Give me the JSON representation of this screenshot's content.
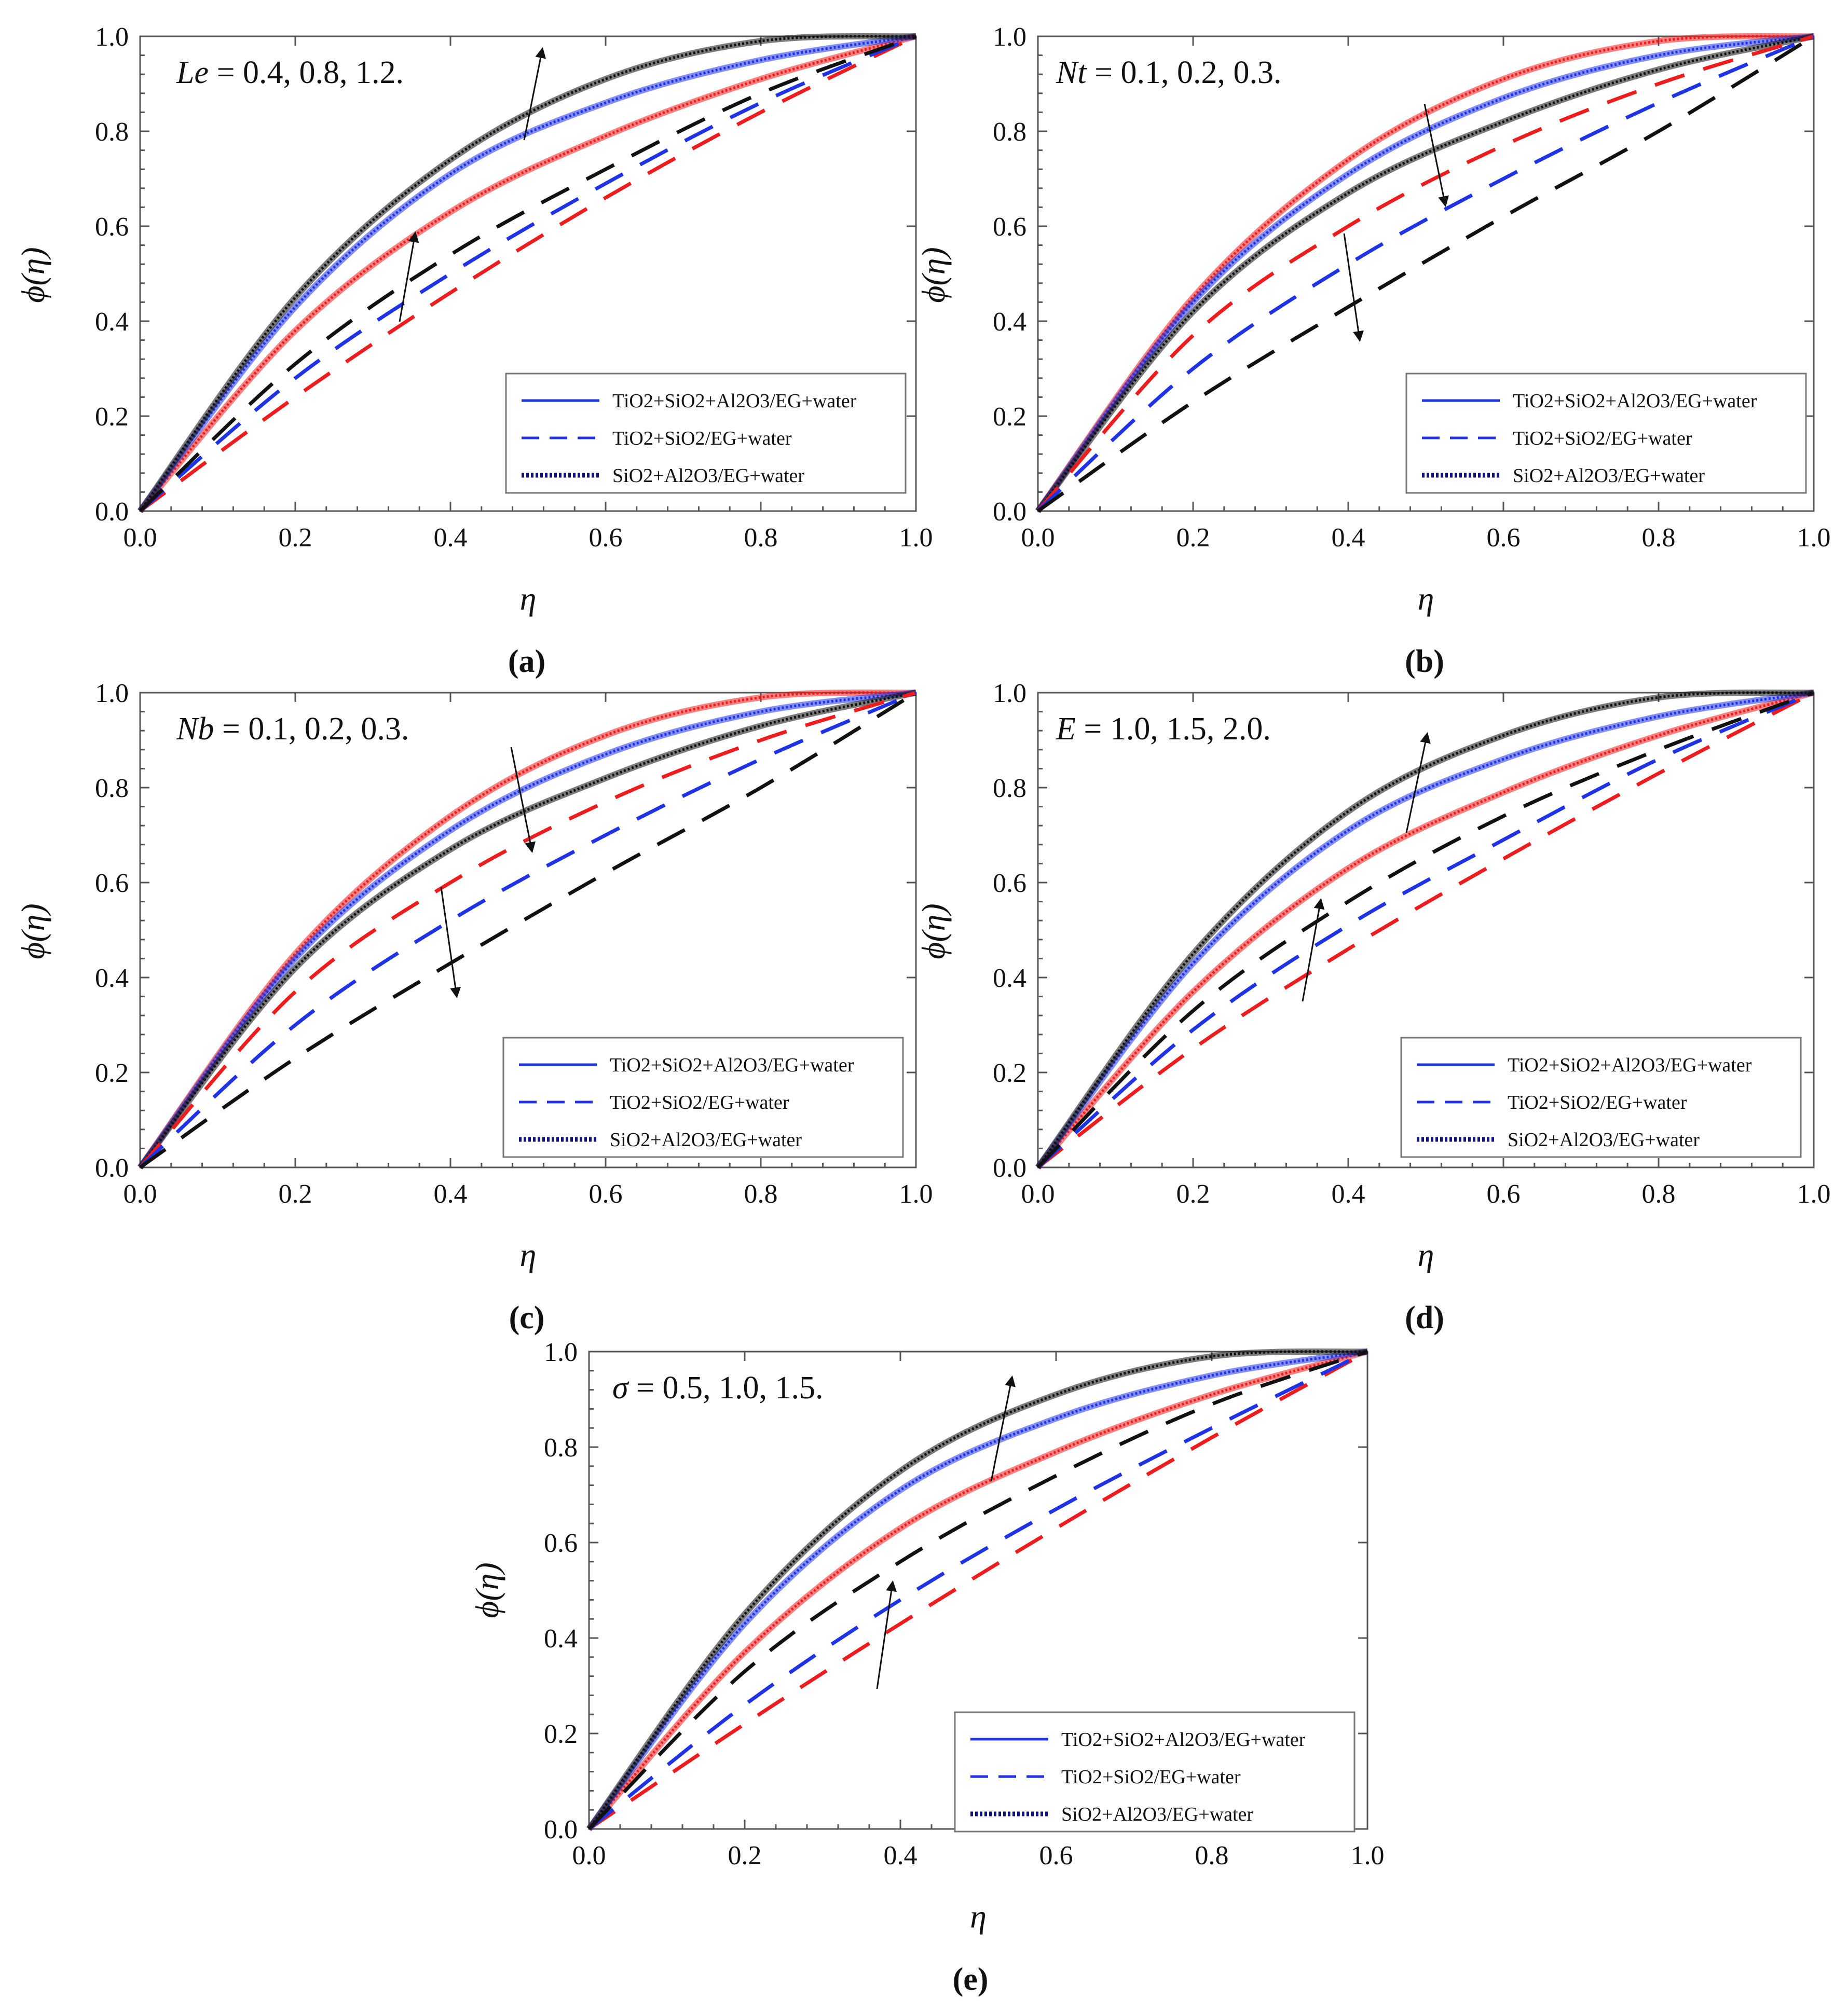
{
  "figure": {
    "y_axis_label": "ϕ(η)",
    "x_axis_label": "η",
    "legend": [
      {
        "label": "TiO2+SiO2+Al2O3/EG+water",
        "style": "solid"
      },
      {
        "label": "TiO2+SiO2/EG+water",
        "style": "dashed"
      },
      {
        "label": "SiO2+Al2O3/EG+water",
        "style": "dotted"
      }
    ],
    "colors": {
      "red": "#ee1c1c",
      "blue": "#1f33e6",
      "black": "#111111"
    }
  },
  "chart_data": [
    {
      "type": "line",
      "panel_label": "(a)",
      "param_symbol": "Le",
      "param_values": "= 0.4, 0.8, 1.2.",
      "xlabel": "η",
      "ylabel": "ϕ(η)",
      "xlim": [
        0,
        1
      ],
      "ylim": [
        0,
        1
      ],
      "xticks": [
        "0.0",
        "0.2",
        "0.4",
        "0.6",
        "0.8",
        "1.0"
      ],
      "yticks": [
        "0.0",
        "0.2",
        "0.4",
        "0.6",
        "0.8",
        "1.0"
      ],
      "trend": "increasing",
      "series": [
        {
          "name": "Le = 0.4 (solid/dotted)",
          "color": "red",
          "style": "solid",
          "x": [
            0,
            0.2,
            0.4,
            0.6,
            0.8,
            1.0
          ],
          "y": [
            0,
            0.38,
            0.63,
            0.79,
            0.91,
            1.0
          ]
        },
        {
          "name": "Le = 0.8 (solid/dotted)",
          "color": "blue",
          "style": "solid",
          "x": [
            0,
            0.2,
            0.4,
            0.6,
            0.8,
            1.0
          ],
          "y": [
            0,
            0.43,
            0.71,
            0.86,
            0.95,
            1.0
          ]
        },
        {
          "name": "Le = 1.2 (solid/dotted)",
          "color": "black",
          "style": "solid",
          "x": [
            0,
            0.2,
            0.4,
            0.6,
            0.8,
            1.0
          ],
          "y": [
            0,
            0.45,
            0.74,
            0.91,
            0.99,
            1.0
          ]
        },
        {
          "name": "Le = 0.4 (dashed)",
          "color": "red",
          "style": "dashed",
          "x": [
            0,
            0.2,
            0.4,
            0.6,
            0.8,
            1.0
          ],
          "y": [
            0,
            0.24,
            0.46,
            0.66,
            0.84,
            1.0
          ]
        },
        {
          "name": "Le = 0.8 (dashed)",
          "color": "blue",
          "style": "dashed",
          "x": [
            0,
            0.2,
            0.4,
            0.6,
            0.8,
            1.0
          ],
          "y": [
            0,
            0.28,
            0.5,
            0.69,
            0.86,
            1.0
          ]
        },
        {
          "name": "Le = 1.2 (dashed)",
          "color": "black",
          "style": "dashed",
          "x": [
            0,
            0.2,
            0.4,
            0.6,
            0.8,
            1.0
          ],
          "y": [
            0,
            0.31,
            0.54,
            0.72,
            0.88,
            1.0
          ]
        }
      ]
    },
    {
      "type": "line",
      "panel_label": "(b)",
      "param_symbol": "Nt",
      "param_values": "= 0.1, 0.2, 0.3.",
      "xlabel": "η",
      "ylabel": "ϕ(η)",
      "xlim": [
        0,
        1
      ],
      "ylim": [
        0,
        1
      ],
      "xticks": [
        "0.0",
        "0.2",
        "0.4",
        "0.6",
        "0.8",
        "1.0"
      ],
      "yticks": [
        "0.0",
        "0.2",
        "0.4",
        "0.6",
        "0.8",
        "1.0"
      ],
      "trend": "decreasing",
      "series": [
        {
          "name": "Nt = 0.1 (solid/dotted)",
          "color": "red",
          "style": "solid",
          "x": [
            0,
            0.2,
            0.4,
            0.6,
            0.8,
            1.0
          ],
          "y": [
            0,
            0.45,
            0.74,
            0.91,
            0.99,
            1.0
          ]
        },
        {
          "name": "Nt = 0.2 (solid/dotted)",
          "color": "blue",
          "style": "solid",
          "x": [
            0,
            0.2,
            0.4,
            0.6,
            0.8,
            1.0
          ],
          "y": [
            0,
            0.44,
            0.71,
            0.87,
            0.96,
            1.0
          ]
        },
        {
          "name": "Nt = 0.3 (solid/dotted)",
          "color": "black",
          "style": "solid",
          "x": [
            0,
            0.2,
            0.4,
            0.6,
            0.8,
            1.0
          ],
          "y": [
            0,
            0.42,
            0.67,
            0.82,
            0.93,
            1.0
          ]
        },
        {
          "name": "Nt = 0.1 (dashed)",
          "color": "red",
          "style": "dashed",
          "x": [
            0,
            0.2,
            0.4,
            0.6,
            0.8,
            1.0
          ],
          "y": [
            0,
            0.37,
            0.6,
            0.77,
            0.9,
            1.0
          ]
        },
        {
          "name": "Nt = 0.2 (dashed)",
          "color": "blue",
          "style": "dashed",
          "x": [
            0,
            0.2,
            0.4,
            0.6,
            0.8,
            1.0
          ],
          "y": [
            0,
            0.3,
            0.52,
            0.7,
            0.86,
            1.0
          ]
        },
        {
          "name": "Nt = 0.3 (dashed)",
          "color": "black",
          "style": "dashed",
          "x": [
            0,
            0.2,
            0.4,
            0.6,
            0.8,
            1.0
          ],
          "y": [
            0,
            0.23,
            0.43,
            0.62,
            0.8,
            1.0
          ]
        }
      ]
    },
    {
      "type": "line",
      "panel_label": "(c)",
      "param_symbol": "Nb",
      "param_values": "= 0.1, 0.2, 0.3.",
      "xlabel": "η",
      "ylabel": "ϕ(η)",
      "xlim": [
        0,
        1
      ],
      "ylim": [
        0,
        1
      ],
      "xticks": [
        "0.0",
        "0.2",
        "0.4",
        "0.6",
        "0.8",
        "1.0"
      ],
      "yticks": [
        "0.0",
        "0.2",
        "0.4",
        "0.6",
        "0.8",
        "1.0"
      ],
      "trend": "decreasing",
      "series": [
        {
          "name": "Nb = 0.1 (solid/dotted)",
          "color": "red",
          "style": "solid",
          "x": [
            0,
            0.2,
            0.4,
            0.6,
            0.8,
            1.0
          ],
          "y": [
            0,
            0.45,
            0.74,
            0.91,
            0.99,
            1.0
          ]
        },
        {
          "name": "Nb = 0.2 (solid/dotted)",
          "color": "blue",
          "style": "solid",
          "x": [
            0,
            0.2,
            0.4,
            0.6,
            0.8,
            1.0
          ],
          "y": [
            0,
            0.44,
            0.71,
            0.87,
            0.96,
            1.0
          ]
        },
        {
          "name": "Nb = 0.3 (solid/dotted)",
          "color": "black",
          "style": "solid",
          "x": [
            0,
            0.2,
            0.4,
            0.6,
            0.8,
            1.0
          ],
          "y": [
            0,
            0.42,
            0.67,
            0.82,
            0.93,
            1.0
          ]
        },
        {
          "name": "Nb = 0.1 (dashed)",
          "color": "red",
          "style": "dashed",
          "x": [
            0,
            0.2,
            0.4,
            0.6,
            0.8,
            1.0
          ],
          "y": [
            0,
            0.37,
            0.6,
            0.77,
            0.9,
            1.0
          ]
        },
        {
          "name": "Nb = 0.2 (dashed)",
          "color": "blue",
          "style": "dashed",
          "x": [
            0,
            0.2,
            0.4,
            0.6,
            0.8,
            1.0
          ],
          "y": [
            0,
            0.3,
            0.52,
            0.7,
            0.86,
            1.0
          ]
        },
        {
          "name": "Nb = 0.3 (dashed)",
          "color": "black",
          "style": "dashed",
          "x": [
            0,
            0.2,
            0.4,
            0.6,
            0.8,
            1.0
          ],
          "y": [
            0,
            0.23,
            0.43,
            0.62,
            0.8,
            1.0
          ]
        }
      ]
    },
    {
      "type": "line",
      "panel_label": "(d)",
      "param_symbol": "E",
      "param_values": "= 1.0, 1.5, 2.0.",
      "xlabel": "η",
      "ylabel": "ϕ(η)",
      "xlim": [
        0,
        1
      ],
      "ylim": [
        0,
        1
      ],
      "xticks": [
        "0.0",
        "0.2",
        "0.4",
        "0.6",
        "0.8",
        "1.0"
      ],
      "yticks": [
        "0.0",
        "0.2",
        "0.4",
        "0.6",
        "0.8",
        "1.0"
      ],
      "trend": "increasing",
      "series": [
        {
          "name": "E = 1.0 (solid/dotted)",
          "color": "red",
          "style": "solid",
          "x": [
            0,
            0.2,
            0.4,
            0.6,
            0.8,
            1.0
          ],
          "y": [
            0,
            0.37,
            0.63,
            0.79,
            0.91,
            1.0
          ]
        },
        {
          "name": "E = 1.5 (solid/dotted)",
          "color": "blue",
          "style": "solid",
          "x": [
            0,
            0.2,
            0.4,
            0.6,
            0.8,
            1.0
          ],
          "y": [
            0,
            0.43,
            0.71,
            0.86,
            0.95,
            1.0
          ]
        },
        {
          "name": "E = 2.0 (solid/dotted)",
          "color": "black",
          "style": "solid",
          "x": [
            0,
            0.2,
            0.4,
            0.6,
            0.8,
            1.0
          ],
          "y": [
            0,
            0.45,
            0.75,
            0.91,
            0.99,
            1.0
          ]
        },
        {
          "name": "E = 1.0 (dashed)",
          "color": "red",
          "style": "dashed",
          "x": [
            0,
            0.2,
            0.4,
            0.6,
            0.8,
            1.0
          ],
          "y": [
            0,
            0.25,
            0.46,
            0.65,
            0.83,
            1.0
          ]
        },
        {
          "name": "E = 1.5 (dashed)",
          "color": "blue",
          "style": "dashed",
          "x": [
            0,
            0.2,
            0.4,
            0.6,
            0.8,
            1.0
          ],
          "y": [
            0,
            0.29,
            0.51,
            0.69,
            0.86,
            1.0
          ]
        },
        {
          "name": "E = 2.0 (dashed)",
          "color": "black",
          "style": "dashed",
          "x": [
            0,
            0.2,
            0.4,
            0.6,
            0.8,
            1.0
          ],
          "y": [
            0,
            0.33,
            0.56,
            0.74,
            0.88,
            1.0
          ]
        }
      ]
    },
    {
      "type": "line",
      "panel_label": "(e)",
      "param_symbol": "σ",
      "param_values": "= 0.5, 1.0, 1.5.",
      "xlabel": "η",
      "ylabel": "ϕ(η)",
      "xlim": [
        0,
        1
      ],
      "ylim": [
        0,
        1
      ],
      "xticks": [
        "0.0",
        "0.2",
        "0.4",
        "0.6",
        "0.8",
        "1.0"
      ],
      "yticks": [
        "0.0",
        "0.2",
        "0.4",
        "0.6",
        "0.8",
        "1.0"
      ],
      "trend": "increasing",
      "series": [
        {
          "name": "σ = 0.5 (solid/dotted)",
          "color": "red",
          "style": "solid",
          "x": [
            0,
            0.2,
            0.4,
            0.6,
            0.8,
            1.0
          ],
          "y": [
            0,
            0.37,
            0.63,
            0.79,
            0.91,
            1.0
          ]
        },
        {
          "name": "σ = 1.0 (solid/dotted)",
          "color": "blue",
          "style": "solid",
          "x": [
            0,
            0.2,
            0.4,
            0.6,
            0.8,
            1.0
          ],
          "y": [
            0,
            0.43,
            0.71,
            0.86,
            0.95,
            1.0
          ]
        },
        {
          "name": "σ = 1.5 (solid/dotted)",
          "color": "black",
          "style": "solid",
          "x": [
            0,
            0.2,
            0.4,
            0.6,
            0.8,
            1.0
          ],
          "y": [
            0,
            0.45,
            0.75,
            0.91,
            0.99,
            1.0
          ]
        },
        {
          "name": "σ = 0.5 (dashed)",
          "color": "red",
          "style": "dashed",
          "x": [
            0,
            0.2,
            0.4,
            0.6,
            0.8,
            1.0
          ],
          "y": [
            0,
            0.22,
            0.43,
            0.63,
            0.82,
            1.0
          ]
        },
        {
          "name": "σ = 1.0 (dashed)",
          "color": "blue",
          "style": "dashed",
          "x": [
            0,
            0.2,
            0.4,
            0.6,
            0.8,
            1.0
          ],
          "y": [
            0,
            0.26,
            0.48,
            0.67,
            0.84,
            1.0
          ]
        },
        {
          "name": "σ = 1.5 (dashed)",
          "color": "black",
          "style": "dashed",
          "x": [
            0,
            0.2,
            0.4,
            0.6,
            0.8,
            1.0
          ],
          "y": [
            0,
            0.33,
            0.56,
            0.74,
            0.89,
            1.0
          ]
        }
      ]
    }
  ]
}
